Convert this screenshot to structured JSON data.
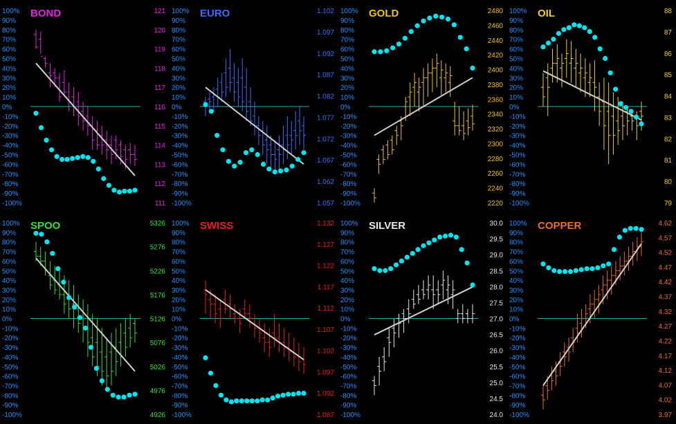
{
  "left_ticks": [
    "100%",
    "90%",
    "80%",
    "70%",
    "60%",
    "50%",
    "40%",
    "30%",
    "20%",
    "10%",
    "0%",
    "-10%",
    "-20%",
    "-30%",
    "-40%",
    "-50%",
    "-60%",
    "-70%",
    "-80%",
    "-90%",
    "-100%"
  ],
  "colors": {
    "background": "#000000",
    "divider": "#cccccc",
    "zero_line": "#22b0b0",
    "dots": "#00e5f0",
    "trend": "#d0d0d0",
    "left_ticks": "#1e90ff"
  },
  "chart_data": [
    {
      "type": "line",
      "title": "BOND",
      "color": "#e620e6",
      "right_ticks": [
        "121",
        "120",
        "119",
        "118",
        "117",
        "116",
        "115",
        "114",
        "113",
        "112",
        "111"
      ],
      "right_ylim": [
        111,
        121
      ],
      "trend": [
        45,
        -72
      ],
      "bars": [
        [
          80,
          60,
          75,
          62
        ],
        [
          78,
          55,
          70,
          52
        ],
        [
          52,
          40,
          50,
          45
        ],
        [
          45,
          20,
          35,
          32
        ],
        [
          40,
          20,
          35,
          30
        ],
        [
          35,
          5,
          30,
          10
        ],
        [
          38,
          10,
          25,
          15
        ],
        [
          25,
          -5,
          15,
          5
        ],
        [
          20,
          -10,
          10,
          0
        ],
        [
          15,
          -20,
          5,
          -10
        ],
        [
          5,
          -25,
          -5,
          -15
        ],
        [
          0,
          -30,
          -10,
          -20
        ],
        [
          -10,
          -45,
          -20,
          -35
        ],
        [
          -15,
          -45,
          -25,
          -40
        ],
        [
          -20,
          -50,
          -30,
          -40
        ],
        [
          -25,
          -55,
          -35,
          -45
        ],
        [
          -30,
          -60,
          -40,
          -50
        ],
        [
          -30,
          -55,
          -35,
          -45
        ],
        [
          -35,
          -60,
          -40,
          -52
        ],
        [
          -40,
          -65,
          -45,
          -55
        ],
        [
          -38,
          -60,
          -45,
          -50
        ],
        [
          -40,
          -62,
          -50,
          -55
        ]
      ],
      "dots": [
        -7,
        -22,
        -35,
        -45,
        -52,
        -55,
        -55,
        -54,
        -53,
        -52,
        -53,
        -57,
        -65,
        -75,
        -82,
        -87,
        -89,
        -88,
        -88,
        -87
      ]
    },
    {
      "type": "line",
      "title": "EURO",
      "color": "#3b6cff",
      "right_ticks": [
        "1.102",
        "1.097",
        "1.092",
        "1.087",
        "1.082",
        "1.077",
        "1.072",
        "1.067",
        "1.062",
        "1.057"
      ],
      "right_ylim": [
        1.057,
        1.102
      ],
      "trend": [
        20,
        -60
      ],
      "bars": [
        [
          10,
          -10,
          5,
          0
        ],
        [
          15,
          -5,
          8,
          5
        ],
        [
          20,
          -5,
          10,
          0
        ],
        [
          30,
          0,
          18,
          10
        ],
        [
          35,
          5,
          25,
          15
        ],
        [
          50,
          10,
          35,
          20
        ],
        [
          60,
          15,
          40,
          25
        ],
        [
          45,
          5,
          30,
          15
        ],
        [
          40,
          0,
          25,
          10
        ],
        [
          50,
          -5,
          30,
          5
        ],
        [
          40,
          -15,
          20,
          -5
        ],
        [
          20,
          -20,
          5,
          -15
        ],
        [
          5,
          -30,
          -10,
          -20
        ],
        [
          -10,
          -40,
          -20,
          -30
        ],
        [
          -15,
          -50,
          -25,
          -40
        ],
        [
          -20,
          -60,
          -35,
          -45
        ],
        [
          -30,
          -65,
          -40,
          -50
        ],
        [
          -35,
          -70,
          -50,
          -55
        ],
        [
          -30,
          -65,
          -45,
          -50
        ],
        [
          -20,
          -60,
          -40,
          -45
        ],
        [
          -10,
          -55,
          -30,
          -40
        ],
        [
          -15,
          -50,
          -30,
          -35
        ],
        [
          -5,
          -45,
          -25,
          -30
        ],
        [
          0,
          -40,
          -15,
          -25
        ],
        [
          -10,
          -45,
          -20,
          -30
        ]
      ],
      "dots": [
        2,
        -5,
        -30,
        -45,
        -57,
        -62,
        -58,
        -48,
        -45,
        -50,
        -60,
        -65,
        -68,
        -67,
        -66,
        -62,
        -55,
        -48
      ]
    },
    {
      "type": "line",
      "title": "GOLD",
      "color": "#f0c020",
      "right_ticks": [
        "2480",
        "2460",
        "2440",
        "2420",
        "2400",
        "2380",
        "2360",
        "2340",
        "2320",
        "2300",
        "2280",
        "2260",
        "2240",
        "2220"
      ],
      "right_ylim": [
        2220,
        2480
      ],
      "trend": [
        -30,
        30
      ],
      "bars": [
        [
          -85,
          -100,
          -90,
          -95
        ],
        [
          -50,
          -70,
          -55,
          -60
        ],
        [
          -40,
          -60,
          -45,
          -55
        ],
        [
          -35,
          -55,
          -40,
          -50
        ],
        [
          -30,
          -50,
          -35,
          -45
        ],
        [
          -20,
          -40,
          -25,
          -30
        ],
        [
          -10,
          -35,
          -15,
          -20
        ],
        [
          10,
          -15,
          0,
          5
        ],
        [
          25,
          -10,
          10,
          15
        ],
        [
          35,
          0,
          20,
          25
        ],
        [
          30,
          -5,
          15,
          20
        ],
        [
          40,
          0,
          25,
          30
        ],
        [
          45,
          10,
          30,
          35
        ],
        [
          50,
          15,
          35,
          40
        ],
        [
          55,
          20,
          40,
          45
        ],
        [
          48,
          12,
          30,
          38
        ],
        [
          45,
          15,
          30,
          35
        ],
        [
          42,
          10,
          25,
          32
        ],
        [
          5,
          -30,
          -15,
          -20
        ],
        [
          0,
          -30,
          -20,
          -25
        ],
        [
          -5,
          -35,
          -20,
          -28
        ],
        [
          -2,
          -30,
          -15,
          -22
        ],
        [
          2,
          -25,
          -10,
          -18
        ]
      ],
      "dots": [
        57,
        57,
        58,
        61,
        65,
        71,
        78,
        84,
        89,
        92,
        94,
        93,
        91,
        85,
        72,
        60,
        40
      ]
    },
    {
      "type": "line",
      "title": "OIL",
      "color": "#f0d020",
      "right_ticks": [
        "88",
        "87",
        "86",
        "85",
        "84",
        "83",
        "82",
        "81",
        "80",
        "79"
      ],
      "right_ylim": [
        79,
        88
      ],
      "trend": [
        37,
        -14
      ],
      "bars": [
        [
          35,
          0,
          20,
          10
        ],
        [
          45,
          -10,
          30,
          20
        ],
        [
          60,
          25,
          40,
          45
        ],
        [
          65,
          25,
          45,
          50
        ],
        [
          55,
          20,
          40,
          45
        ],
        [
          70,
          30,
          50,
          55
        ],
        [
          68,
          25,
          45,
          50
        ],
        [
          60,
          20,
          40,
          45
        ],
        [
          55,
          15,
          35,
          40
        ],
        [
          50,
          10,
          30,
          35
        ],
        [
          45,
          10,
          25,
          30
        ],
        [
          48,
          -5,
          25,
          20
        ],
        [
          25,
          -20,
          10,
          -5
        ],
        [
          30,
          -45,
          5,
          -20
        ],
        [
          25,
          -60,
          -5,
          -30
        ],
        [
          15,
          -50,
          -10,
          -30
        ],
        [
          10,
          -40,
          -15,
          -25
        ],
        [
          5,
          -35,
          -10,
          -20
        ],
        [
          0,
          -30,
          -5,
          -15
        ],
        [
          -5,
          -25,
          -10,
          -15
        ],
        [
          -5,
          -35,
          -10,
          -20
        ],
        [
          5,
          -25,
          -5,
          -10
        ]
      ],
      "dots": [
        62,
        66,
        70,
        76,
        80,
        82,
        85,
        84,
        82,
        78,
        72,
        60,
        50,
        35,
        18,
        3,
        -1,
        -5,
        -11,
        -18
      ]
    },
    {
      "type": "line",
      "title": "SPOO",
      "color": "#30e030",
      "right_ticks": [
        "5326",
        "5276",
        "5226",
        "5176",
        "5126",
        "5076",
        "5026",
        "4976",
        "4926"
      ],
      "right_ylim": [
        4926,
        5326
      ],
      "trend": [
        63,
        -55
      ],
      "bars": [
        [
          80,
          60,
          70,
          65
        ],
        [
          75,
          55,
          65,
          60
        ],
        [
          70,
          45,
          60,
          50
        ],
        [
          60,
          30,
          45,
          35
        ],
        [
          55,
          25,
          40,
          30
        ],
        [
          50,
          20,
          35,
          25
        ],
        [
          45,
          5,
          25,
          15
        ],
        [
          40,
          0,
          20,
          10
        ],
        [
          35,
          -10,
          15,
          0
        ],
        [
          25,
          -15,
          10,
          -5
        ],
        [
          20,
          -25,
          0,
          -10
        ],
        [
          15,
          -40,
          -10,
          -25
        ],
        [
          5,
          -50,
          -20,
          -40
        ],
        [
          0,
          -60,
          -25,
          -50
        ],
        [
          -10,
          -70,
          -35,
          -55
        ],
        [
          -20,
          -75,
          -40,
          -60
        ],
        [
          -15,
          -70,
          -35,
          -55
        ],
        [
          -10,
          -60,
          -30,
          -45
        ],
        [
          -5,
          -50,
          -25,
          -40
        ],
        [
          0,
          -40,
          -15,
          -30
        ],
        [
          5,
          -30,
          -10,
          -20
        ],
        [
          0,
          -25,
          -5,
          -15
        ]
      ],
      "dots": [
        89,
        88,
        80,
        68,
        52,
        38,
        22,
        12,
        1,
        -10,
        -30,
        -52,
        -65,
        -74,
        -80,
        -82,
        -82,
        -80,
        -79
      ]
    },
    {
      "type": "line",
      "title": "SWISS",
      "color": "#ee1c1c",
      "right_ticks": [
        "1.132",
        "1.127",
        "1.122",
        "1.117",
        "1.112",
        "1.107",
        "1.102",
        "1.097",
        "1.092",
        "1.087"
      ],
      "right_ylim": [
        1.087,
        1.132
      ],
      "trend": [
        30,
        -43
      ],
      "bars": [
        [
          40,
          5,
          30,
          25
        ],
        [
          30,
          0,
          20,
          15
        ],
        [
          25,
          -5,
          15,
          5
        ],
        [
          20,
          -10,
          10,
          0
        ],
        [
          30,
          5,
          20,
          10
        ],
        [
          25,
          0,
          15,
          10
        ],
        [
          15,
          -5,
          5,
          0
        ],
        [
          10,
          -15,
          0,
          -5
        ],
        [
          20,
          0,
          10,
          5
        ],
        [
          15,
          -10,
          5,
          0
        ],
        [
          5,
          -20,
          -5,
          -10
        ],
        [
          0,
          -25,
          -10,
          -15
        ],
        [
          -5,
          -35,
          -20,
          -25
        ],
        [
          -10,
          -40,
          -25,
          -30
        ],
        [
          5,
          -30,
          -15,
          -20
        ],
        [
          -5,
          -35,
          -20,
          -25
        ],
        [
          -10,
          -40,
          -25,
          -30
        ],
        [
          -15,
          -45,
          -30,
          -35
        ],
        [
          -20,
          -50,
          -35,
          -40
        ],
        [
          -25,
          -55,
          -38,
          -45
        ],
        [
          -30,
          -58,
          -42,
          -48
        ]
      ],
      "dots": [
        -41,
        -57,
        -70,
        -80,
        -85,
        -87,
        -86,
        -86,
        -86,
        -86,
        -86,
        -85,
        -85,
        -83,
        -81,
        -80,
        -79,
        -79,
        -78,
        -78
      ]
    },
    {
      "type": "line",
      "title": "SILVER",
      "color": "#e8e8e8",
      "right_ticks": [
        "30.0",
        "29.5",
        "29.0",
        "28.5",
        "28.0",
        "27.5",
        "27.0",
        "26.5",
        "26.0",
        "25.5",
        "25.0",
        "24.5",
        "24.0"
      ],
      "right_ylim": [
        24.0,
        30.0
      ],
      "trend": [
        -17,
        33
      ],
      "bars": [
        [
          -60,
          -80,
          -65,
          -70
        ],
        [
          -40,
          -70,
          -50,
          -55
        ],
        [
          -30,
          -55,
          -40,
          -45
        ],
        [
          -10,
          -40,
          -20,
          -25
        ],
        [
          0,
          -30,
          -10,
          -15
        ],
        [
          5,
          -20,
          0,
          -5
        ],
        [
          10,
          -15,
          5,
          0
        ],
        [
          20,
          -5,
          10,
          5
        ],
        [
          30,
          10,
          20,
          15
        ],
        [
          35,
          15,
          25,
          20
        ],
        [
          40,
          20,
          30,
          25
        ],
        [
          45,
          20,
          30,
          35
        ],
        [
          45,
          10,
          30,
          25
        ],
        [
          40,
          15,
          30,
          25
        ],
        [
          50,
          20,
          35,
          40
        ],
        [
          45,
          15,
          30,
          35
        ],
        [
          40,
          10,
          25,
          30
        ],
        [
          10,
          -5,
          0,
          5
        ],
        [
          15,
          -5,
          5,
          0
        ],
        [
          10,
          -5,
          5,
          0
        ],
        [
          15,
          -5,
          0,
          5
        ]
      ],
      "dots": [
        52,
        50,
        50,
        52,
        56,
        60,
        64,
        68,
        72,
        76,
        79,
        82,
        85,
        86,
        87,
        85,
        72,
        58,
        35
      ]
    },
    {
      "type": "line",
      "title": "COPPER",
      "color": "#f06a20",
      "right_ticks": [
        "4.62",
        "4.57",
        "4.52",
        "4.47",
        "4.42",
        "4.37",
        "4.32",
        "4.27",
        "4.22",
        "4.17",
        "4.12",
        "4.07",
        "4.02",
        "3.97"
      ],
      "right_ylim": [
        3.97,
        4.62
      ],
      "trend": [
        -70,
        78
      ],
      "bars": [
        [
          -70,
          -95,
          -80,
          -85
        ],
        [
          -60,
          -85,
          -70,
          -75
        ],
        [
          -50,
          -75,
          -60,
          -65
        ],
        [
          -45,
          -70,
          -55,
          -60
        ],
        [
          -35,
          -60,
          -45,
          -50
        ],
        [
          -25,
          -50,
          -35,
          -40
        ],
        [
          -20,
          -45,
          -30,
          -35
        ],
        [
          -10,
          -35,
          -20,
          -25
        ],
        [
          5,
          -25,
          -10,
          -15
        ],
        [
          10,
          -20,
          -5,
          -10
        ],
        [
          15,
          -10,
          0,
          5
        ],
        [
          25,
          -5,
          10,
          15
        ],
        [
          30,
          0,
          15,
          20
        ],
        [
          35,
          5,
          20,
          25
        ],
        [
          45,
          15,
          30,
          35
        ],
        [
          50,
          20,
          35,
          40
        ],
        [
          55,
          25,
          40,
          45
        ],
        [
          60,
          35,
          45,
          50
        ],
        [
          65,
          40,
          50,
          55
        ],
        [
          70,
          45,
          55,
          60
        ],
        [
          75,
          50,
          60,
          65
        ],
        [
          80,
          55,
          65,
          70
        ],
        [
          85,
          60,
          70,
          75
        ],
        [
          90,
          65,
          75,
          80
        ]
      ],
      "dots": [
        57,
        53,
        50,
        49,
        49,
        49,
        50,
        51,
        52,
        52,
        53,
        55,
        57,
        72,
        85,
        92,
        94,
        94,
        93
      ]
    }
  ]
}
